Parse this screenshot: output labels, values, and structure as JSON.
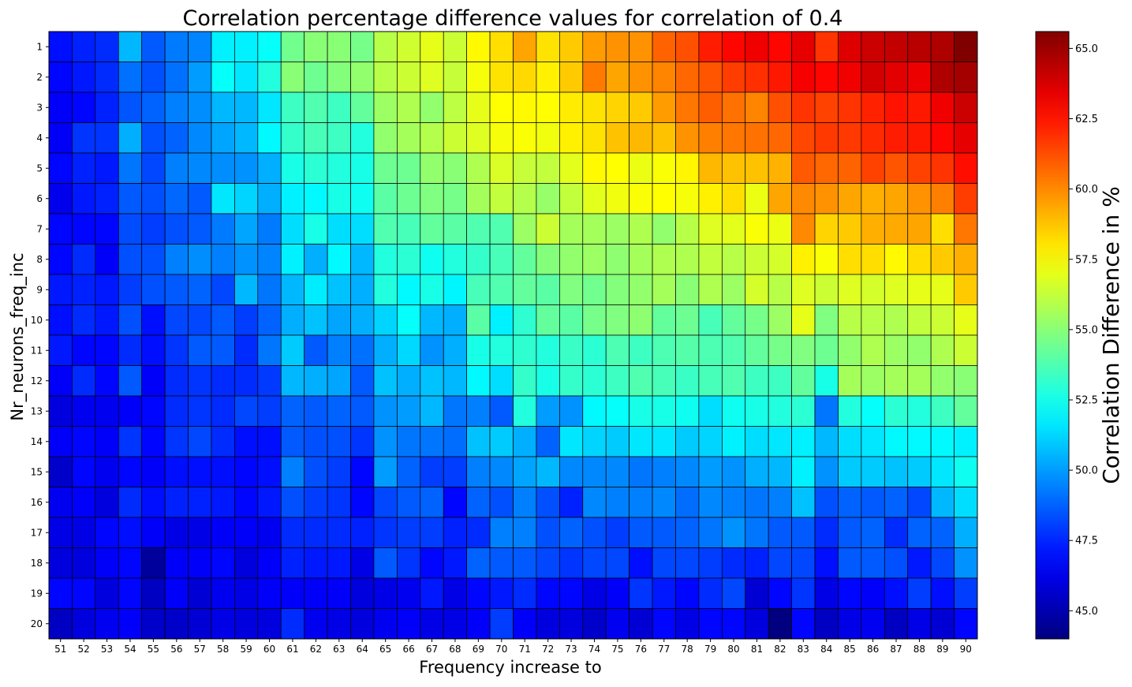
{
  "chart_data": {
    "type": "heatmap",
    "title": "Correlation percentage difference values for correlation of 0.4",
    "xlabel": "Frequency increase to",
    "ylabel": "Nr_neurons_freq_inc",
    "colorbar_label": "Correlation Difference in %",
    "colormap": "jet",
    "vmin": 44.0,
    "vmax": 65.6,
    "colorbar_ticks": [
      "45.0",
      "47.5",
      "50.0",
      "52.5",
      "55.0",
      "57.5",
      "60.0",
      "62.5",
      "65.0"
    ],
    "x_categories": [
      "51",
      "52",
      "53",
      "54",
      "55",
      "56",
      "57",
      "58",
      "59",
      "60",
      "61",
      "62",
      "63",
      "64",
      "65",
      "66",
      "67",
      "68",
      "69",
      "70",
      "71",
      "72",
      "73",
      "74",
      "75",
      "76",
      "77",
      "78",
      "79",
      "80",
      "81",
      "82",
      "83",
      "84",
      "85",
      "86",
      "87",
      "88",
      "89",
      "90"
    ],
    "y_categories": [
      "1",
      "2",
      "3",
      "4",
      "5",
      "6",
      "7",
      "8",
      "9",
      "10",
      "11",
      "12",
      "13",
      "14",
      "15",
      "16",
      "17",
      "18",
      "19",
      "20"
    ],
    "grid": true,
    "values": [
      [
        47.0,
        47.4,
        47.6,
        50.6,
        48.6,
        49.3,
        49.5,
        51.8,
        51.8,
        52.2,
        54.5,
        55.0,
        55.0,
        54.6,
        56.0,
        56.5,
        57.0,
        56.4,
        57.6,
        58.2,
        59.4,
        58.1,
        58.6,
        59.6,
        59.8,
        59.8,
        60.8,
        61.2,
        62.3,
        62.8,
        63.2,
        62.8,
        63.4,
        61.8,
        63.6,
        64.0,
        64.2,
        64.4,
        64.6,
        65.6
      ],
      [
        46.8,
        47.2,
        47.6,
        49.1,
        48.4,
        49.1,
        50.0,
        52.2,
        51.6,
        52.8,
        55.0,
        54.4,
        54.9,
        55.2,
        56.0,
        56.4,
        56.8,
        56.3,
        57.3,
        58.1,
        58.3,
        57.8,
        58.6,
        60.3,
        59.4,
        59.8,
        60.1,
        60.7,
        61.1,
        61.6,
        61.9,
        62.4,
        63.1,
        62.8,
        63.2,
        63.8,
        63.5,
        63.3,
        64.6,
        64.8
      ],
      [
        46.6,
        46.8,
        47.4,
        48.5,
        48.8,
        49.4,
        49.7,
        50.6,
        50.6,
        51.6,
        53.4,
        53.8,
        53.4,
        54.2,
        55.4,
        55.8,
        55.2,
        56.1,
        57.0,
        57.5,
        57.6,
        57.5,
        57.9,
        58.1,
        58.4,
        58.6,
        59.6,
        60.4,
        60.9,
        60.5,
        60.1,
        61.2,
        61.8,
        61.5,
        61.8,
        62.2,
        62.5,
        62.4,
        63.2,
        64.0
      ],
      [
        46.5,
        47.8,
        47.8,
        50.4,
        48.4,
        48.8,
        49.6,
        50.2,
        50.6,
        52.0,
        53.2,
        53.6,
        53.4,
        52.8,
        55.2,
        55.6,
        55.9,
        56.4,
        56.8,
        57.3,
        57.4,
        57.2,
        57.8,
        58.1,
        58.8,
        59.0,
        58.8,
        59.8,
        60.2,
        60.4,
        60.5,
        60.7,
        61.4,
        61.7,
        61.7,
        62.0,
        62.3,
        62.4,
        62.8,
        63.4
      ],
      [
        46.8,
        47.4,
        47.2,
        49.2,
        48.2,
        49.4,
        49.6,
        49.7,
        49.8,
        50.4,
        52.6,
        53.0,
        52.8,
        52.6,
        54.4,
        54.4,
        55.2,
        55.0,
        55.8,
        56.7,
        56.3,
        56.2,
        56.9,
        57.6,
        57.5,
        57.1,
        57.4,
        57.7,
        59.0,
        58.8,
        58.8,
        59.1,
        61.0,
        60.7,
        60.8,
        61.5,
        61.1,
        61.5,
        61.8,
        62.6
      ],
      [
        46.3,
        47.2,
        47.4,
        48.6,
        48.4,
        48.9,
        48.6,
        51.6,
        51.2,
        50.4,
        51.8,
        52.0,
        52.6,
        52.4,
        54.0,
        54.4,
        54.8,
        54.6,
        55.6,
        56.2,
        55.9,
        55.3,
        56.2,
        56.9,
        57.2,
        57.4,
        57.5,
        57.3,
        57.8,
        58.2,
        57.1,
        59.4,
        60.0,
        59.8,
        59.4,
        59.2,
        59.4,
        59.8,
        60.2,
        61.6
      ],
      [
        46.8,
        46.8,
        46.8,
        48.3,
        48.0,
        48.4,
        48.6,
        49.3,
        50.2,
        49.3,
        51.4,
        52.6,
        51.4,
        51.4,
        53.8,
        53.6,
        54.2,
        54.0,
        53.8,
        53.8,
        55.4,
        56.4,
        55.6,
        55.6,
        55.4,
        55.8,
        55.2,
        56.0,
        56.8,
        56.9,
        57.4,
        57.1,
        60.0,
        58.4,
        58.6,
        59.2,
        59.3,
        59.4,
        58.2,
        60.4
      ],
      [
        46.8,
        47.6,
        46.6,
        48.4,
        48.4,
        49.4,
        49.7,
        49.4,
        49.8,
        49.5,
        51.8,
        50.4,
        52.0,
        50.6,
        52.8,
        53.0,
        52.4,
        52.8,
        53.2,
        53.6,
        54.2,
        54.9,
        55.2,
        55.4,
        55.1,
        55.6,
        55.8,
        55.8,
        56.2,
        56.0,
        56.4,
        56.6,
        57.8,
        57.4,
        58.2,
        58.2,
        57.6,
        58.2,
        58.6,
        59.2
      ],
      [
        47.2,
        47.4,
        47.2,
        48.0,
        48.4,
        48.6,
        48.8,
        48.2,
        50.6,
        49.2,
        50.6,
        51.7,
        50.8,
        50.4,
        52.8,
        52.0,
        52.6,
        51.9,
        53.6,
        53.8,
        54.2,
        54.0,
        54.8,
        54.5,
        54.9,
        55.2,
        55.6,
        55.0,
        55.8,
        55.4,
        56.6,
        56.0,
        56.8,
        56.4,
        56.8,
        56.6,
        56.8,
        57.0,
        57.0,
        58.6
      ],
      [
        47.0,
        47.6,
        47.2,
        48.4,
        47.0,
        48.2,
        48.2,
        48.6,
        48.0,
        48.8,
        50.4,
        50.8,
        50.2,
        50.4,
        51.2,
        52.2,
        50.6,
        50.4,
        54.0,
        51.8,
        53.1,
        54.2,
        54.0,
        54.6,
        54.8,
        55.1,
        54.2,
        54.4,
        53.6,
        54.2,
        54.6,
        55.4,
        57.0,
        54.8,
        56.0,
        56.0,
        55.8,
        56.2,
        56.4,
        57.0
      ],
      [
        47.2,
        46.8,
        46.8,
        47.6,
        47.0,
        47.8,
        48.6,
        48.6,
        47.6,
        49.2,
        51.0,
        48.6,
        49.4,
        49.1,
        50.4,
        51.3,
        49.8,
        50.4,
        52.6,
        52.8,
        53.1,
        52.8,
        53.3,
        53.0,
        53.7,
        53.4,
        53.7,
        53.9,
        53.7,
        53.8,
        54.2,
        54.6,
        54.8,
        54.4,
        55.2,
        55.8,
        55.4,
        55.2,
        55.8,
        56.4
      ],
      [
        46.6,
        47.6,
        46.8,
        48.6,
        46.6,
        47.6,
        47.8,
        47.6,
        47.6,
        47.9,
        50.6,
        50.4,
        50.2,
        48.6,
        50.8,
        50.4,
        50.8,
        50.6,
        52.0,
        51.4,
        53.2,
        52.6,
        53.2,
        53.0,
        53.4,
        53.8,
        53.6,
        53.3,
        53.6,
        53.8,
        53.4,
        53.4,
        54.2,
        52.6,
        55.6,
        55.4,
        55.6,
        55.6,
        55.2,
        55.0
      ],
      [
        46.0,
        46.4,
        46.4,
        46.6,
        46.8,
        47.6,
        47.8,
        47.6,
        48.2,
        48.0,
        48.8,
        48.6,
        48.8,
        48.6,
        49.8,
        50.0,
        50.6,
        49.2,
        49.4,
        48.6,
        52.8,
        50.0,
        49.8,
        52.0,
        52.2,
        52.6,
        52.6,
        52.4,
        51.4,
        52.4,
        52.6,
        52.8,
        53.0,
        49.2,
        52.8,
        52.2,
        53.0,
        52.8,
        53.4,
        54.2
      ],
      [
        46.6,
        46.8,
        46.6,
        47.8,
        46.8,
        47.8,
        48.2,
        47.6,
        47.0,
        47.0,
        48.6,
        48.4,
        48.4,
        47.8,
        49.8,
        49.2,
        49.2,
        49.0,
        50.8,
        51.0,
        50.4,
        48.8,
        51.6,
        51.2,
        51.0,
        51.6,
        51.6,
        51.0,
        51.2,
        51.8,
        51.4,
        51.6,
        51.8,
        50.6,
        51.4,
        51.6,
        52.0,
        52.0,
        52.0,
        51.8
      ],
      [
        45.6,
        46.8,
        46.4,
        46.8,
        46.6,
        47.0,
        47.0,
        47.0,
        46.8,
        47.0,
        49.4,
        48.4,
        48.0,
        46.8,
        50.0,
        48.8,
        48.0,
        48.0,
        49.4,
        49.6,
        50.2,
        50.6,
        49.6,
        49.6,
        49.6,
        49.2,
        49.4,
        49.6,
        50.0,
        49.8,
        50.4,
        50.6,
        51.8,
        49.8,
        51.0,
        51.0,
        50.8,
        51.0,
        51.6,
        52.4
      ],
      [
        46.4,
        46.6,
        46.0,
        47.6,
        47.0,
        47.4,
        47.4,
        47.2,
        46.8,
        47.2,
        48.4,
        48.0,
        47.8,
        46.8,
        48.2,
        48.6,
        48.8,
        46.8,
        48.8,
        48.4,
        49.4,
        48.4,
        47.4,
        49.6,
        49.4,
        49.4,
        49.6,
        49.0,
        49.6,
        49.4,
        49.2,
        49.4,
        50.8,
        48.4,
        48.8,
        48.6,
        48.8,
        48.2,
        50.6,
        51.4
      ],
      [
        46.2,
        46.2,
        46.8,
        47.0,
        46.6,
        46.2,
        46.2,
        46.6,
        46.6,
        46.4,
        47.6,
        47.6,
        47.6,
        47.4,
        47.8,
        48.0,
        48.0,
        47.4,
        47.6,
        49.4,
        49.4,
        48.4,
        48.8,
        48.4,
        48.0,
        48.6,
        48.6,
        48.8,
        49.2,
        49.8,
        49.2,
        48.6,
        48.6,
        47.6,
        48.6,
        48.8,
        47.6,
        48.8,
        48.8,
        50.4
      ],
      [
        46.0,
        46.0,
        46.6,
        46.8,
        44.6,
        46.6,
        46.6,
        46.8,
        46.0,
        46.6,
        47.4,
        47.2,
        47.2,
        46.2,
        48.6,
        47.8,
        46.8,
        47.2,
        48.8,
        48.6,
        48.6,
        48.2,
        47.8,
        48.2,
        48.2,
        47.0,
        48.2,
        48.2,
        48.0,
        47.6,
        47.4,
        48.2,
        48.2,
        47.0,
        48.6,
        48.6,
        48.4,
        47.2,
        48.2,
        49.8
      ],
      [
        46.8,
        46.8,
        46.0,
        46.8,
        45.4,
        46.6,
        45.8,
        46.4,
        46.2,
        46.6,
        46.6,
        46.6,
        46.6,
        46.0,
        46.2,
        46.4,
        47.2,
        46.2,
        46.8,
        47.2,
        47.6,
        46.8,
        46.8,
        46.2,
        46.6,
        47.8,
        47.2,
        46.8,
        47.6,
        48.2,
        45.8,
        46.8,
        47.8,
        46.2,
        46.8,
        46.6,
        47.0,
        48.0,
        47.0,
        48.0
      ],
      [
        45.4,
        46.0,
        46.4,
        46.6,
        45.6,
        45.6,
        45.8,
        46.2,
        46.0,
        46.0,
        47.6,
        46.4,
        46.2,
        46.0,
        46.4,
        46.6,
        46.2,
        46.2,
        46.6,
        48.0,
        46.6,
        46.0,
        46.0,
        45.6,
        46.4,
        45.8,
        46.8,
        46.2,
        46.8,
        46.8,
        46.0,
        44.0,
        46.8,
        45.4,
        46.2,
        46.4,
        45.4,
        46.2,
        45.8,
        46.8
      ]
    ]
  }
}
